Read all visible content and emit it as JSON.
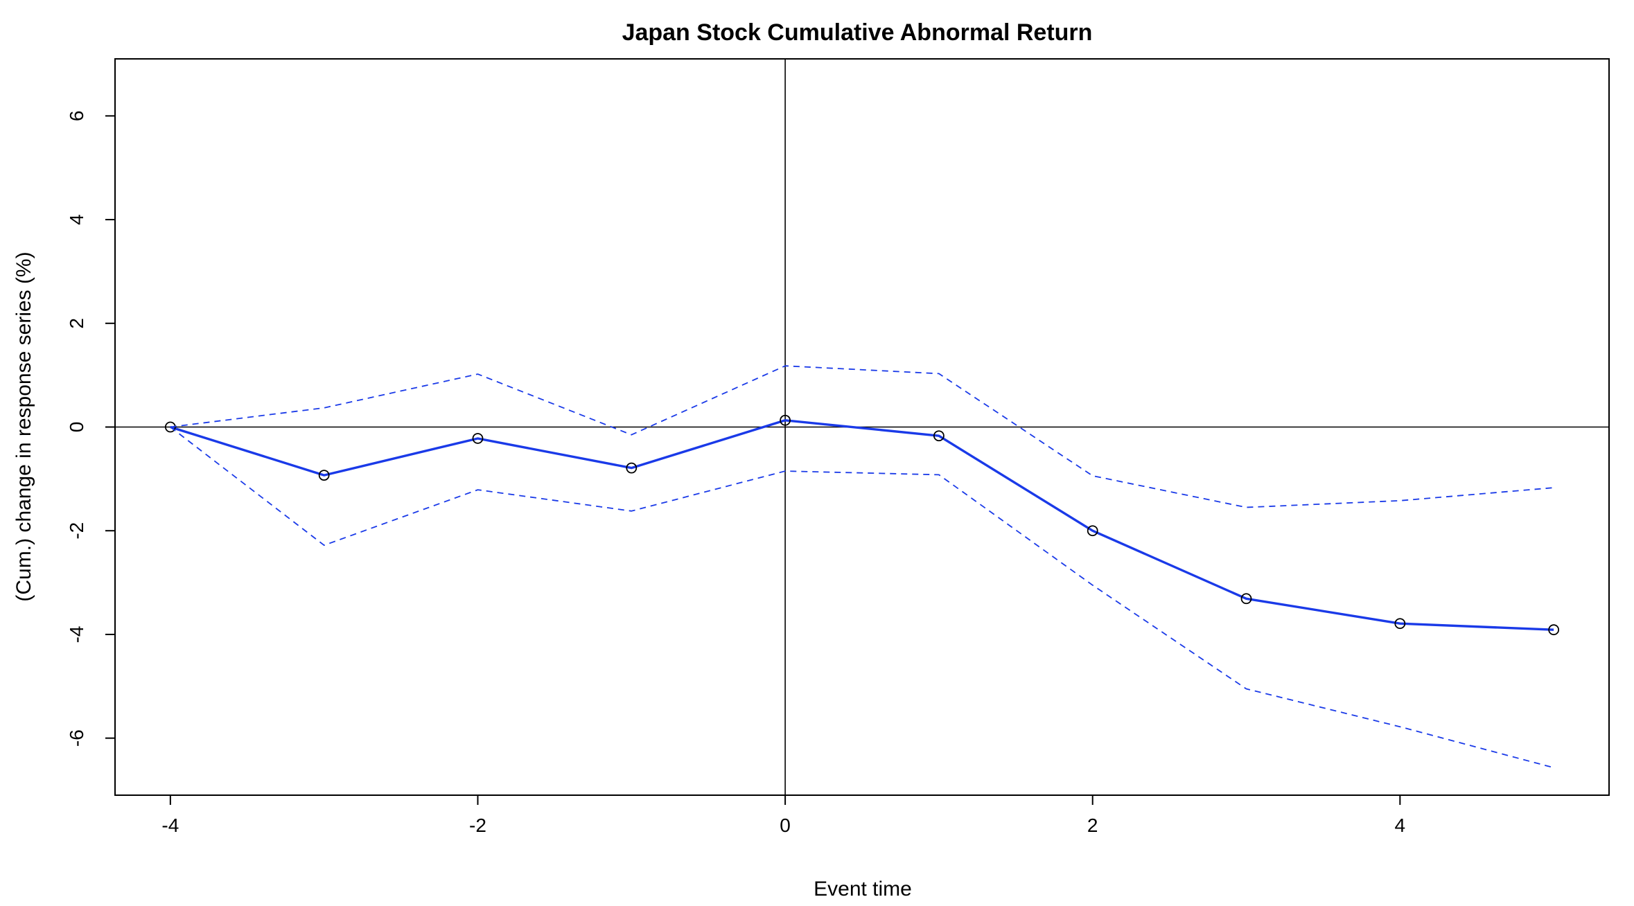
{
  "chart_data": {
    "type": "line",
    "title": "Japan Stock Cumulative Abnormal Return",
    "xlabel": "Event time",
    "ylabel": "(Cum.) change in response series (%)",
    "xlim": [
      -4.36,
      5.36
    ],
    "ylim": [
      -7.1,
      7.1
    ],
    "x_ticks": [
      -4,
      -2,
      0,
      2,
      4
    ],
    "y_ticks": [
      -6,
      -4,
      -2,
      0,
      2,
      4,
      6
    ],
    "grid": false,
    "reference_lines": {
      "x": 0,
      "y": 0
    },
    "x": [
      -4,
      -3,
      -2,
      -1,
      0,
      1,
      2,
      3,
      4,
      5
    ],
    "series": [
      {
        "values": [
          0,
          -0.93,
          -0.22,
          -0.79,
          0.13,
          -0.17,
          -2.0,
          -3.31,
          -3.79,
          -3.91
        ],
        "color": "#1a3ae8",
        "style": "solid",
        "markers": true
      },
      {
        "values": [
          0,
          0.37,
          1.02,
          -0.15,
          1.18,
          1.03,
          -0.94,
          -1.55,
          -1.42,
          -1.17
        ],
        "color": "#1a3ae8",
        "style": "dashed",
        "markers": false
      },
      {
        "values": [
          0,
          -2.28,
          -1.21,
          -1.62,
          -0.85,
          -0.92,
          -3.05,
          -5.05,
          -5.78,
          -6.57
        ],
        "color": "#1a3ae8",
        "style": "dashed",
        "markers": false
      }
    ]
  }
}
